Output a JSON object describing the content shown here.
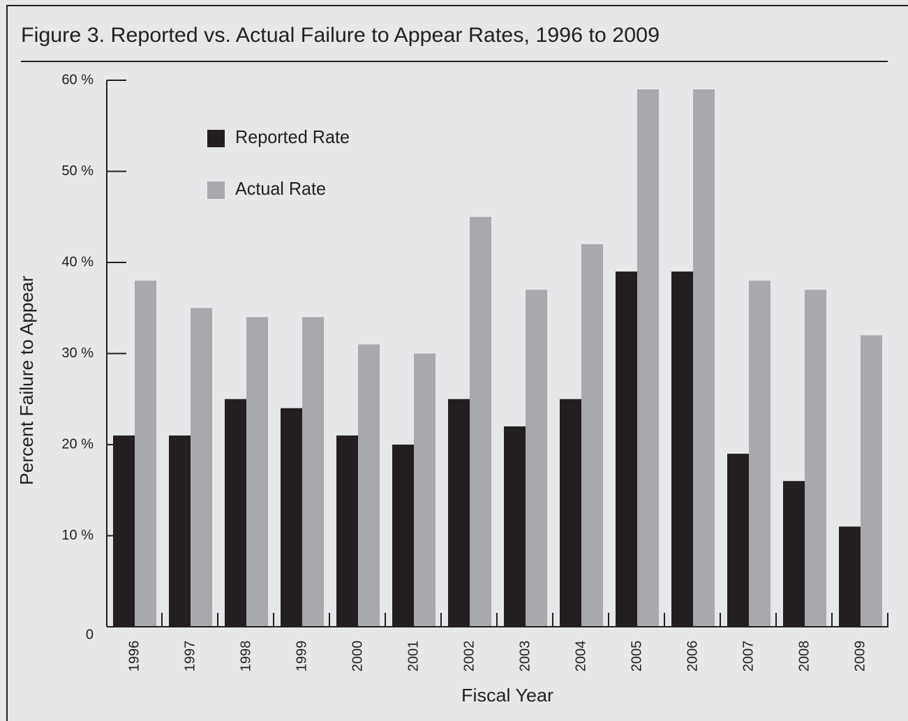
{
  "chart_data": {
    "type": "bar",
    "title": "Figure 3. Reported vs. Actual Failure to Appear Rates, 1996 to 2009",
    "x_label": "Fiscal Year",
    "y_label": "Percent Failure to Appear",
    "categories": [
      "1996",
      "1997",
      "1998",
      "1999",
      "2000",
      "2001",
      "2002",
      "2003",
      "2004",
      "2005",
      "2006",
      "2007",
      "2008",
      "2009"
    ],
    "series": [
      {
        "name": "Reported Rate",
        "color": "#231f20",
        "values": [
          21,
          21,
          25,
          24,
          21,
          20,
          25,
          22,
          25,
          39,
          39,
          19,
          16,
          11
        ]
      },
      {
        "name": "Actual Rate",
        "color": "#a7a9ac",
        "values": [
          38,
          35,
          34,
          34,
          31,
          30,
          45,
          37,
          42,
          59,
          59,
          38,
          37,
          32
        ]
      }
    ],
    "ylim": [
      0,
      60
    ],
    "yticks": [
      0,
      {
        "value": 10,
        "label": "10 %"
      },
      {
        "value": 20,
        "label": "20 %"
      },
      {
        "value": 30,
        "label": "30 %"
      },
      {
        "value": 40,
        "label": "40 %"
      },
      {
        "value": 50,
        "label": "50 %"
      },
      {
        "value": 60,
        "label": "60 %"
      }
    ],
    "grid": false,
    "legend": "upper left"
  }
}
